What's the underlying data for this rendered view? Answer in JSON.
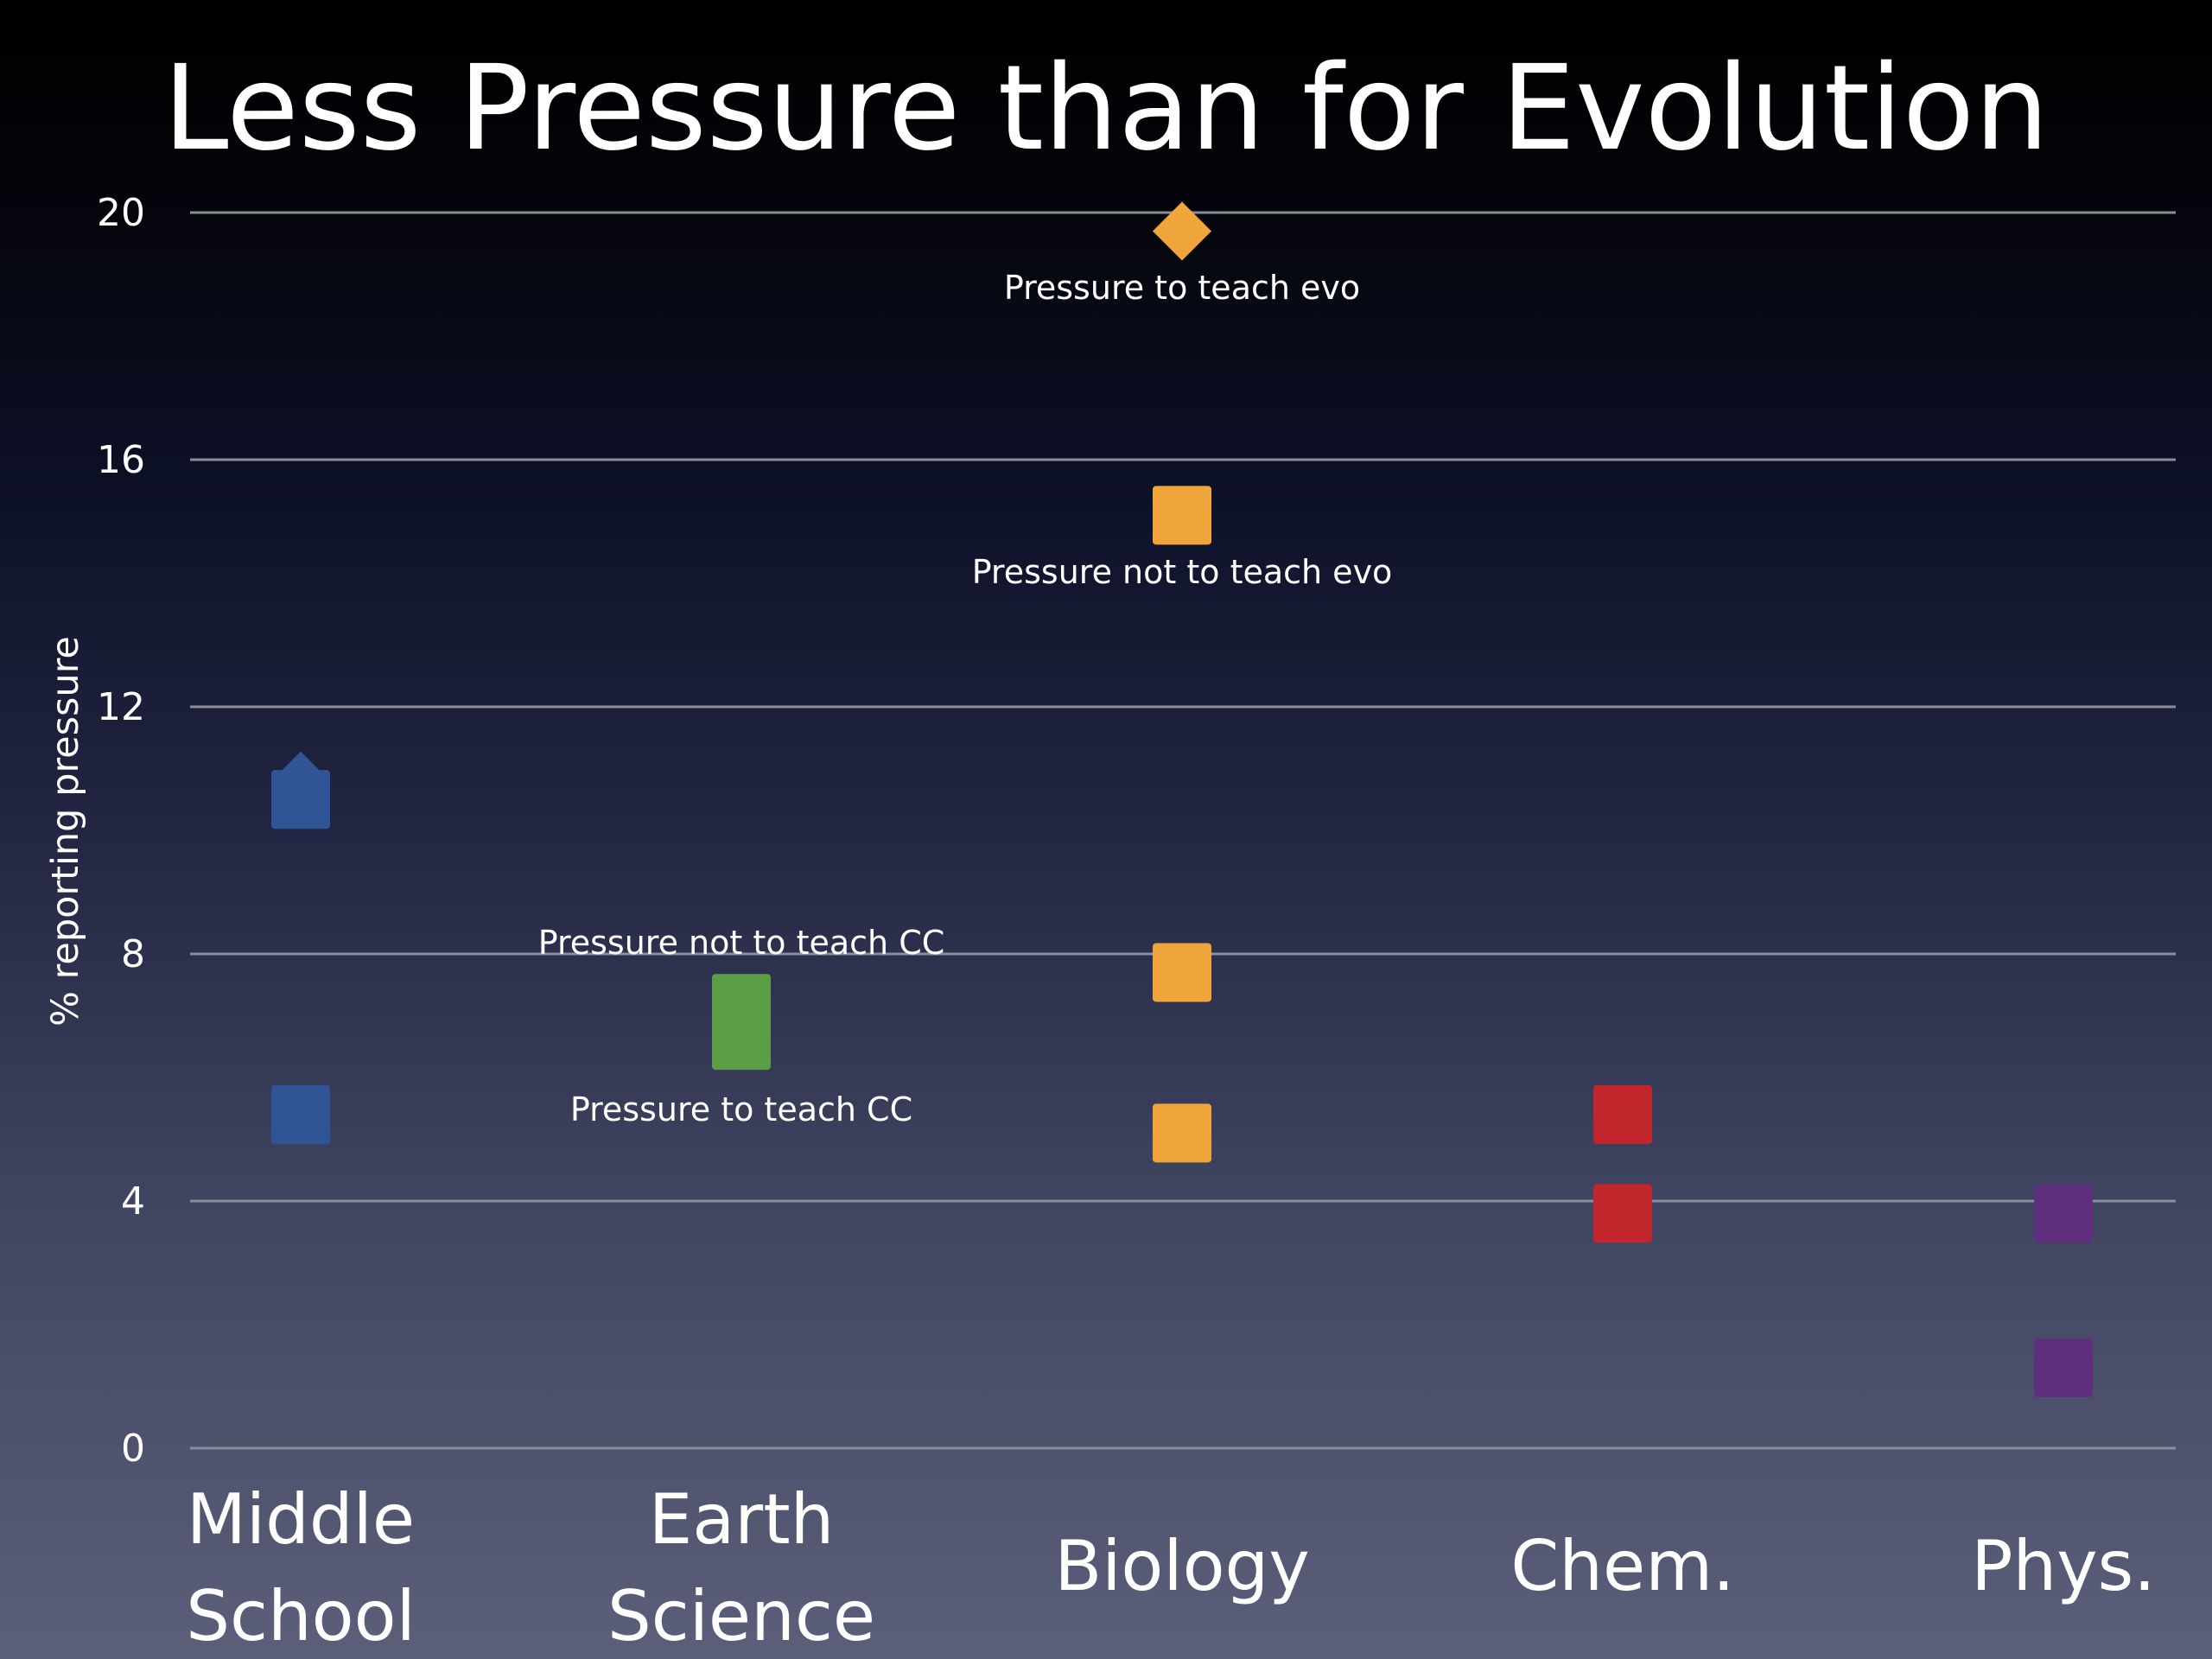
{
  "chart_data": {
    "type": "scatter",
    "title": "Less Pressure than for Evolution",
    "xlabel": "",
    "ylabel": "% reporting pressure",
    "ylim": [
      0,
      20
    ],
    "yticks": [
      0,
      4,
      8,
      12,
      16,
      20
    ],
    "grid": true,
    "categories": [
      {
        "lines": [
          "Middle",
          "School"
        ]
      },
      {
        "lines": [
          "Earth",
          "Science"
        ]
      },
      {
        "lines": [
          "Biology"
        ]
      },
      {
        "lines": [
          "Chem."
        ]
      },
      {
        "lines": [
          "Phys."
        ]
      }
    ],
    "series": [
      {
        "color": "#2f5597",
        "points": [
          {
            "category": 0,
            "y": 10.8,
            "marker": "diamond"
          },
          {
            "category": 0,
            "y": 10.5,
            "marker": "square"
          },
          {
            "category": 0,
            "y": 5.4,
            "marker": "square"
          }
        ]
      },
      {
        "color": "#5c9e45",
        "points": [
          {
            "category": 1,
            "y": 7.2,
            "marker": "square"
          },
          {
            "category": 1,
            "y": 6.6,
            "marker": "square"
          }
        ]
      },
      {
        "color": "#f0a53a",
        "points": [
          {
            "category": 2,
            "y": 19.7,
            "marker": "diamond"
          },
          {
            "category": 2,
            "y": 15.1,
            "marker": "square"
          },
          {
            "category": 2,
            "y": 7.7,
            "marker": "square"
          },
          {
            "category": 2,
            "y": 5.1,
            "marker": "square"
          }
        ]
      },
      {
        "color": "#c0262c",
        "points": [
          {
            "category": 3,
            "y": 5.4,
            "marker": "square"
          },
          {
            "category": 3,
            "y": 3.8,
            "marker": "square"
          }
        ]
      },
      {
        "color": "#5e2f7d",
        "points": [
          {
            "category": 4,
            "y": 3.8,
            "marker": "square"
          },
          {
            "category": 4,
            "y": 1.3,
            "marker": "square"
          }
        ]
      }
    ],
    "annotations": [
      {
        "text": "Pressure to teach evo",
        "category": 2,
        "y": 18.6
      },
      {
        "text": "Pressure not to teach evo",
        "category": 2,
        "y": 14.0
      },
      {
        "text": "Pressure not to teach CC",
        "category": 1,
        "y": 8.0
      },
      {
        "text": "Pressure to teach CC",
        "category": 1,
        "y": 5.3
      }
    ]
  }
}
